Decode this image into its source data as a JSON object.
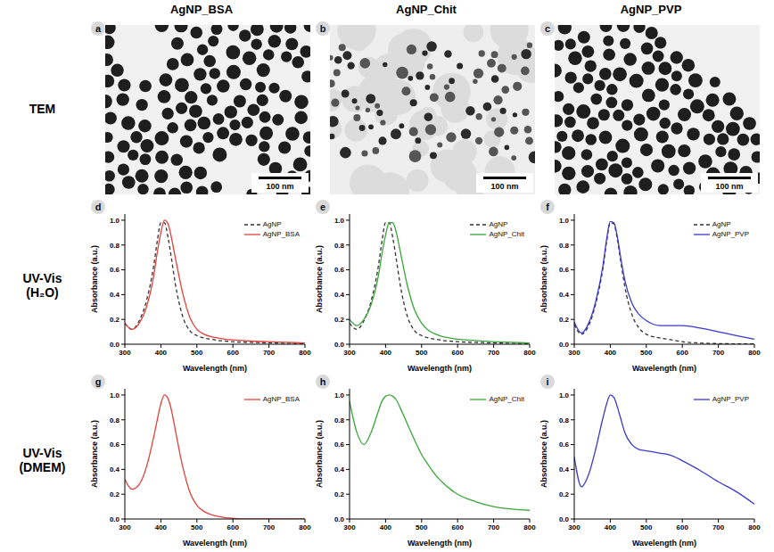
{
  "column_titles": [
    "AgNP_BSA",
    "AgNP_Chit",
    "AgNP_PVP"
  ],
  "row_labels": [
    "TEM",
    "UV-Vis (H₂O)",
    "UV-Vis (DMEM)"
  ],
  "tem_panels": [
    {
      "panel": "a",
      "scale_bar": "100 nm"
    },
    {
      "panel": "b",
      "scale_bar": "100 nm"
    },
    {
      "panel": "c",
      "scale_bar": "100 nm"
    }
  ],
  "chart_data": [
    {
      "panel": "d",
      "type": "line",
      "x_label": "Wavelength (nm)",
      "y_label": "Absorbance (a.u.)",
      "xlim": [
        300,
        800
      ],
      "xticks": [
        300,
        400,
        500,
        600,
        700,
        800
      ],
      "ylim": [
        0,
        1.05
      ],
      "yticks": [
        {
          "value": 0,
          "label": "0.0"
        },
        {
          "value": 0.2,
          "label": "0.2"
        },
        {
          "value": 0.4,
          "label": "0.4"
        },
        {
          "value": 0.6,
          "label": "0.6"
        },
        {
          "value": 0.8,
          "label": "0.8"
        },
        {
          "value": 1,
          "label": "1.0"
        }
      ],
      "grid": false,
      "legend": "top right",
      "x": [
        300,
        320,
        340,
        360,
        380,
        390,
        400,
        410,
        420,
        430,
        440,
        460,
        480,
        500,
        520,
        540,
        560,
        580,
        600,
        650,
        700,
        750,
        800
      ],
      "series": [
        {
          "name": "AgNP",
          "color": "#333333",
          "line_style": "dashed",
          "values": [
            0.17,
            0.12,
            0.19,
            0.35,
            0.63,
            0.83,
            0.98,
            0.98,
            0.86,
            0.68,
            0.49,
            0.23,
            0.11,
            0.07,
            0.05,
            0.04,
            0.03,
            0.025,
            0.02,
            0.015,
            0.01,
            0.008,
            0.005
          ]
        },
        {
          "name": "AgNP_BSA",
          "color": "#e0413a",
          "line_style": "solid",
          "values": [
            0.17,
            0.12,
            0.17,
            0.3,
            0.55,
            0.74,
            0.9,
            1.0,
            0.97,
            0.85,
            0.7,
            0.42,
            0.22,
            0.12,
            0.08,
            0.06,
            0.05,
            0.04,
            0.035,
            0.025,
            0.02,
            0.015,
            0.01
          ]
        }
      ]
    },
    {
      "panel": "e",
      "type": "line",
      "x_label": "Wavelength (nm)",
      "y_label": "Absorbance (a.u.)",
      "xlim": [
        300,
        800
      ],
      "xticks": [
        300,
        400,
        500,
        600,
        700,
        800
      ],
      "ylim": [
        0,
        1.05
      ],
      "yticks": [
        {
          "value": 0,
          "label": "0.0"
        },
        {
          "value": 0.2,
          "label": "0.2"
        },
        {
          "value": 0.4,
          "label": "0.4"
        },
        {
          "value": 0.6,
          "label": "0.6"
        },
        {
          "value": 0.8,
          "label": "0.8"
        },
        {
          "value": 1,
          "label": "1.0"
        }
      ],
      "grid": false,
      "legend": "top right",
      "x": [
        300,
        320,
        340,
        360,
        380,
        390,
        400,
        410,
        420,
        430,
        440,
        460,
        480,
        500,
        520,
        540,
        560,
        580,
        600,
        650,
        700,
        750,
        800
      ],
      "series": [
        {
          "name": "AgNP",
          "color": "#333333",
          "line_style": "dashed",
          "values": [
            0.17,
            0.12,
            0.19,
            0.35,
            0.63,
            0.83,
            0.98,
            0.98,
            0.86,
            0.68,
            0.49,
            0.23,
            0.11,
            0.07,
            0.05,
            0.04,
            0.03,
            0.025,
            0.02,
            0.015,
            0.01,
            0.008,
            0.005
          ]
        },
        {
          "name": "AgNP_Chit",
          "color": "#3aa53a",
          "line_style": "solid",
          "values": [
            0.2,
            0.15,
            0.2,
            0.32,
            0.55,
            0.73,
            0.88,
            0.98,
            0.98,
            0.9,
            0.76,
            0.48,
            0.28,
            0.17,
            0.11,
            0.08,
            0.06,
            0.05,
            0.04,
            0.03,
            0.02,
            0.015,
            0.01
          ]
        }
      ]
    },
    {
      "panel": "f",
      "type": "line",
      "x_label": "Wavelength (nm)",
      "y_label": "Absorbance (a.u.)",
      "xlim": [
        300,
        800
      ],
      "xticks": [
        300,
        400,
        500,
        600,
        700,
        800
      ],
      "ylim": [
        0,
        1.05
      ],
      "yticks": [
        {
          "value": 0,
          "label": "0.0"
        },
        {
          "value": 0.2,
          "label": "0.2"
        },
        {
          "value": 0.4,
          "label": "0.4"
        },
        {
          "value": 0.6,
          "label": "0.6"
        },
        {
          "value": 0.8,
          "label": "0.8"
        },
        {
          "value": 1,
          "label": "1.0"
        }
      ],
      "grid": false,
      "legend": "top right",
      "x": [
        300,
        320,
        340,
        360,
        380,
        390,
        400,
        410,
        420,
        430,
        440,
        460,
        480,
        500,
        520,
        540,
        560,
        580,
        600,
        650,
        700,
        750,
        800
      ],
      "series": [
        {
          "name": "AgNP",
          "color": "#333333",
          "line_style": "dashed",
          "values": [
            0.16,
            0.08,
            0.15,
            0.33,
            0.62,
            0.83,
            0.98,
            0.97,
            0.84,
            0.65,
            0.47,
            0.24,
            0.13,
            0.08,
            0.06,
            0.05,
            0.04,
            0.03,
            0.02,
            0.01,
            0.005,
            0.003,
            0.002
          ]
        },
        {
          "name": "AgNP_PVP",
          "color": "#3a3acc",
          "line_style": "solid",
          "values": [
            0.18,
            0.09,
            0.17,
            0.35,
            0.64,
            0.85,
            0.99,
            0.98,
            0.86,
            0.68,
            0.52,
            0.33,
            0.24,
            0.19,
            0.16,
            0.15,
            0.15,
            0.15,
            0.15,
            0.13,
            0.1,
            0.07,
            0.04
          ]
        }
      ]
    },
    {
      "panel": "g",
      "type": "line",
      "x_label": "Wavelength (nm)",
      "y_label": "Absorbance (a.u.)",
      "xlim": [
        300,
        800
      ],
      "xticks": [
        300,
        400,
        500,
        600,
        700,
        800
      ],
      "ylim": [
        0,
        1.05
      ],
      "yticks": [
        {
          "value": 0,
          "label": "0.0"
        },
        {
          "value": 0.2,
          "label": "0.2"
        },
        {
          "value": 0.4,
          "label": "0.4"
        },
        {
          "value": 0.6,
          "label": "0.6"
        },
        {
          "value": 0.8,
          "label": "0.8"
        },
        {
          "value": 1,
          "label": "1.0"
        }
      ],
      "grid": false,
      "legend": "top right",
      "x": [
        300,
        320,
        340,
        360,
        380,
        390,
        400,
        410,
        420,
        430,
        440,
        460,
        480,
        500,
        520,
        540,
        560,
        580,
        600,
        650,
        700,
        750,
        800
      ],
      "series": [
        {
          "name": "AgNP_BSA",
          "color": "#e0413a",
          "line_style": "solid",
          "values": [
            0.32,
            0.24,
            0.28,
            0.42,
            0.66,
            0.8,
            0.93,
            1.0,
            0.97,
            0.87,
            0.72,
            0.43,
            0.22,
            0.11,
            0.06,
            0.035,
            0.02,
            0.01,
            0.005,
            0,
            0,
            0,
            0
          ]
        }
      ]
    },
    {
      "panel": "h",
      "type": "line",
      "x_label": "Wavelength (nm)",
      "y_label": "Absorbance (a.u.)",
      "xlim": [
        300,
        800
      ],
      "xticks": [
        300,
        400,
        500,
        600,
        700,
        800
      ],
      "ylim": [
        0,
        1.05
      ],
      "yticks": [
        {
          "value": 0,
          "label": "0.0"
        },
        {
          "value": 0.2,
          "label": "0.2"
        },
        {
          "value": 0.4,
          "label": "0.4"
        },
        {
          "value": 0.6,
          "label": "0.6"
        },
        {
          "value": 0.8,
          "label": "0.8"
        },
        {
          "value": 1,
          "label": "1.0"
        }
      ],
      "grid": false,
      "legend": "top right",
      "x": [
        300,
        320,
        340,
        360,
        380,
        390,
        400,
        410,
        420,
        430,
        440,
        460,
        480,
        500,
        520,
        540,
        560,
        580,
        600,
        650,
        700,
        750,
        800
      ],
      "series": [
        {
          "name": "AgNP_Chit",
          "color": "#3aa53a",
          "line_style": "solid",
          "values": [
            0.95,
            0.7,
            0.6,
            0.7,
            0.87,
            0.95,
            0.99,
            1.0,
            0.99,
            0.96,
            0.9,
            0.77,
            0.64,
            0.52,
            0.43,
            0.35,
            0.29,
            0.24,
            0.2,
            0.14,
            0.1,
            0.08,
            0.07
          ]
        }
      ]
    },
    {
      "panel": "i",
      "type": "line",
      "x_label": "Wavelength (nm)",
      "y_label": "Absorbance (a.u.)",
      "xlim": [
        300,
        800
      ],
      "xticks": [
        300,
        400,
        500,
        600,
        700,
        800
      ],
      "ylim": [
        0,
        1.05
      ],
      "yticks": [
        {
          "value": 0,
          "label": "0.0"
        },
        {
          "value": 0.2,
          "label": "0.2"
        },
        {
          "value": 0.4,
          "label": "0.4"
        },
        {
          "value": 0.6,
          "label": "0.6"
        },
        {
          "value": 0.8,
          "label": "0.8"
        },
        {
          "value": 1,
          "label": "1.0"
        }
      ],
      "grid": false,
      "legend": "top right",
      "x": [
        300,
        320,
        340,
        360,
        380,
        390,
        400,
        410,
        420,
        430,
        440,
        460,
        480,
        500,
        520,
        540,
        560,
        580,
        600,
        650,
        700,
        750,
        800
      ],
      "series": [
        {
          "name": "AgNP_PVP",
          "color": "#3a3acc",
          "line_style": "solid",
          "values": [
            0.5,
            0.26,
            0.36,
            0.57,
            0.82,
            0.93,
            1.0,
            0.98,
            0.9,
            0.8,
            0.7,
            0.6,
            0.56,
            0.55,
            0.54,
            0.53,
            0.52,
            0.5,
            0.47,
            0.39,
            0.3,
            0.22,
            0.12
          ]
        }
      ]
    }
  ]
}
